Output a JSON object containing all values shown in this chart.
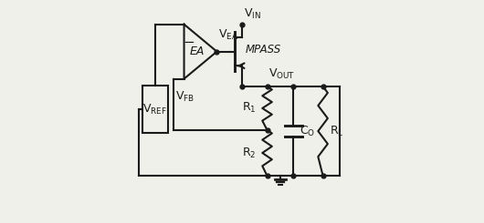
{
  "bg_color": "#f0f0ea",
  "line_color": "#1a1a1a",
  "lw": 1.5,
  "dot_r": 3.5
}
